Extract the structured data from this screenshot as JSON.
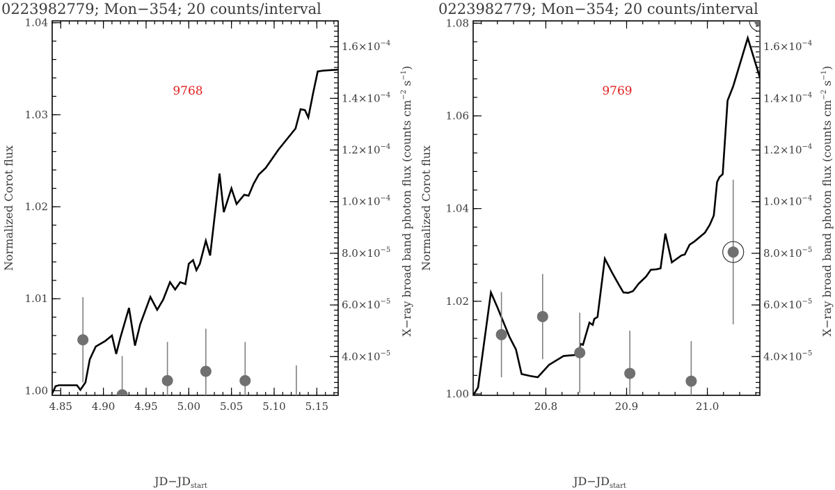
{
  "chart_data": [
    {
      "type": "line",
      "title": "0223982779; Mon−354; 20 counts/interval",
      "annotation": "9768",
      "annotation_color": "#e02020",
      "xlabel": "JD−JD",
      "xlabel_sub": "start",
      "ylabel_left": "Normalized Corot flux",
      "ylabel_right": "X−ray broad band photon flux (counts cm",
      "ylabel_right_sup1": "−2",
      "ylabel_right_mid": " s",
      "ylabel_right_sup2": "−1",
      "ylabel_right_end": ")",
      "xlim": [
        4.84,
        5.175
      ],
      "ylim_left": [
        0.9995,
        1.0402
      ],
      "ylim_right": [
        2.5e-05,
        0.00017
      ],
      "x_ticks": [
        4.85,
        4.9,
        4.95,
        5.0,
        5.05,
        5.1,
        5.15
      ],
      "x_tick_labels": [
        "4.85",
        "4.90",
        "4.95",
        "5.00",
        "5.05",
        "5.10",
        "5.15"
      ],
      "y_left_ticks": [
        1.0,
        1.01,
        1.02,
        1.03,
        1.04
      ],
      "y_left_tick_labels": [
        "1.00",
        "1.01",
        "1.02",
        "1.03",
        "1.04"
      ],
      "y_right_ticks": [
        4e-05,
        6e-05,
        8e-05,
        0.0001,
        0.00012,
        0.00014,
        0.00016
      ],
      "y_right_tick_mantissa": [
        "4.0×10",
        "6.0×10",
        "8.0×10",
        "1.0×10",
        "1.2×10",
        "1.4×10",
        "1.6×10"
      ],
      "y_right_tick_exponent": [
        "−5",
        "−5",
        "−5",
        "−4",
        "−4",
        "−4",
        "−4"
      ],
      "series": [
        {
          "axis": "left",
          "x": [
            4.84,
            4.844,
            4.848,
            4.865,
            4.869,
            4.873,
            4.879,
            4.884,
            4.891,
            4.902,
            4.91,
            4.915,
            4.92,
            4.93,
            4.937,
            4.943,
            4.955,
            4.963,
            4.97,
            4.978,
            4.984,
            4.99,
            4.996,
            5.0,
            5.005,
            5.009,
            5.013,
            5.02,
            5.025,
            5.03,
            5.036,
            5.041,
            5.05,
            5.056,
            5.065,
            5.07,
            5.076,
            5.082,
            5.09,
            5.105,
            5.125,
            5.131,
            5.136,
            5.14,
            5.146,
            5.151,
            5.158,
            5.175
          ],
          "y": [
            0.9997,
            1.0005,
            1.0006,
            1.0006,
            1.0006,
            1.0001,
            1.0009,
            1.0034,
            1.0048,
            1.0054,
            1.006,
            1.004,
            1.0058,
            1.009,
            1.0049,
            1.0072,
            1.0102,
            1.0088,
            1.0099,
            1.0118,
            1.011,
            1.0118,
            1.0116,
            1.0138,
            1.0142,
            1.0131,
            1.0138,
            1.0163,
            1.0147,
            1.0187,
            1.0236,
            1.0194,
            1.022,
            1.0203,
            1.0213,
            1.0212,
            1.0225,
            1.0235,
            1.0242,
            1.0262,
            1.0285,
            1.0306,
            1.0305,
            1.0297,
            1.0325,
            1.0347,
            1.0348,
            1.0349
          ]
        },
        {
          "axis": "right",
          "x": [
            4.876,
            4.922,
            4.975,
            5.02,
            5.066,
            5.126
          ],
          "y": [
            4.65e-05,
            2.52e-05,
            3.07e-05,
            3.43e-05,
            3.07e-05,
            2.26e-05
          ],
          "yerr": [
            1.65e-05,
            1.5e-05,
            1.5e-05,
            1.65e-05,
            1.5e-05,
            1.4e-05
          ],
          "circled": [
            false,
            false,
            false,
            false,
            false,
            false
          ]
        }
      ]
    },
    {
      "type": "line",
      "title": "0223982779; Mon−354; 20 counts/interval",
      "annotation": "9769",
      "annotation_color": "#e02020",
      "xlabel": "JD−JD",
      "xlabel_sub": "start",
      "ylabel_left": "Normalized Corot flux",
      "ylabel_right": "X−ray broad band photon flux (counts cm",
      "ylabel_right_sup1": "−2",
      "ylabel_right_mid": " s",
      "ylabel_right_sup2": "−1",
      "ylabel_right_end": ")",
      "xlim": [
        20.71,
        21.065
      ],
      "ylim_left": [
        0.9997,
        1.0805
      ],
      "ylim_right": [
        2.5e-05,
        0.00017
      ],
      "x_ticks": [
        20.8,
        20.9,
        21.0
      ],
      "x_tick_labels": [
        "20.8",
        "20.9",
        "21.0"
      ],
      "y_left_ticks": [
        1.0,
        1.02,
        1.04,
        1.06,
        1.08
      ],
      "y_left_tick_labels": [
        "1.00",
        "1.02",
        "1.04",
        "1.06",
        "1.08"
      ],
      "y_right_ticks": [
        4e-05,
        6e-05,
        8e-05,
        0.0001,
        0.00012,
        0.00014,
        0.00016
      ],
      "y_right_tick_mantissa": [
        "4.0×10",
        "6.0×10",
        "8.0×10",
        "1.0×10",
        "1.2×10",
        "1.4×10",
        "1.6×10"
      ],
      "y_right_tick_exponent": [
        "−5",
        "−5",
        "−5",
        "−4",
        "−4",
        "−4",
        "−4"
      ],
      "series": [
        {
          "axis": "left",
          "x": [
            20.71,
            20.716,
            20.732,
            20.74,
            20.755,
            20.763,
            20.77,
            20.78,
            20.79,
            20.804,
            20.822,
            20.836,
            20.84,
            20.843,
            20.846,
            20.854,
            20.858,
            20.86,
            20.864,
            20.873,
            20.882,
            20.89,
            20.896,
            20.902,
            20.908,
            20.915,
            20.924,
            20.93,
            20.937,
            20.942,
            20.948,
            20.956,
            20.968,
            20.972,
            20.978,
            20.984,
            20.997,
            21.003,
            21.008,
            21.012,
            21.015,
            21.019,
            21.025,
            21.032,
            21.05,
            21.065
          ],
          "y": [
            0.9997,
            1.0014,
            1.0219,
            1.0187,
            1.0123,
            1.0096,
            1.0043,
            1.0039,
            1.0036,
            1.0063,
            1.0082,
            1.0084,
            1.0085,
            1.0108,
            1.0106,
            1.0154,
            1.0149,
            1.0162,
            1.0166,
            1.0292,
            1.0262,
            1.0237,
            1.0219,
            1.0218,
            1.0222,
            1.0238,
            1.0253,
            1.0268,
            1.0269,
            1.0271,
            1.0346,
            1.0284,
            1.0299,
            1.0301,
            1.0322,
            1.0329,
            1.0348,
            1.0365,
            1.0385,
            1.0457,
            1.0468,
            1.0474,
            1.0633,
            1.0664,
            1.0768,
            1.0683
          ]
        },
        {
          "axis": "right",
          "x": [
            20.745,
            20.796,
            20.842,
            20.904,
            20.98,
            21.032,
            21.065
          ],
          "y": [
            4.85e-05,
            5.55e-05,
            4.15e-05,
            3.35e-05,
            3.05e-05,
            8.05e-05,
            0.00017
          ],
          "yerr": [
            1.65e-05,
            1.65e-05,
            1.55e-05,
            1.65e-05,
            1.55e-05,
            2.8e-05,
            1.9e-05
          ],
          "circled": [
            false,
            false,
            false,
            false,
            false,
            true,
            true
          ]
        }
      ]
    }
  ]
}
